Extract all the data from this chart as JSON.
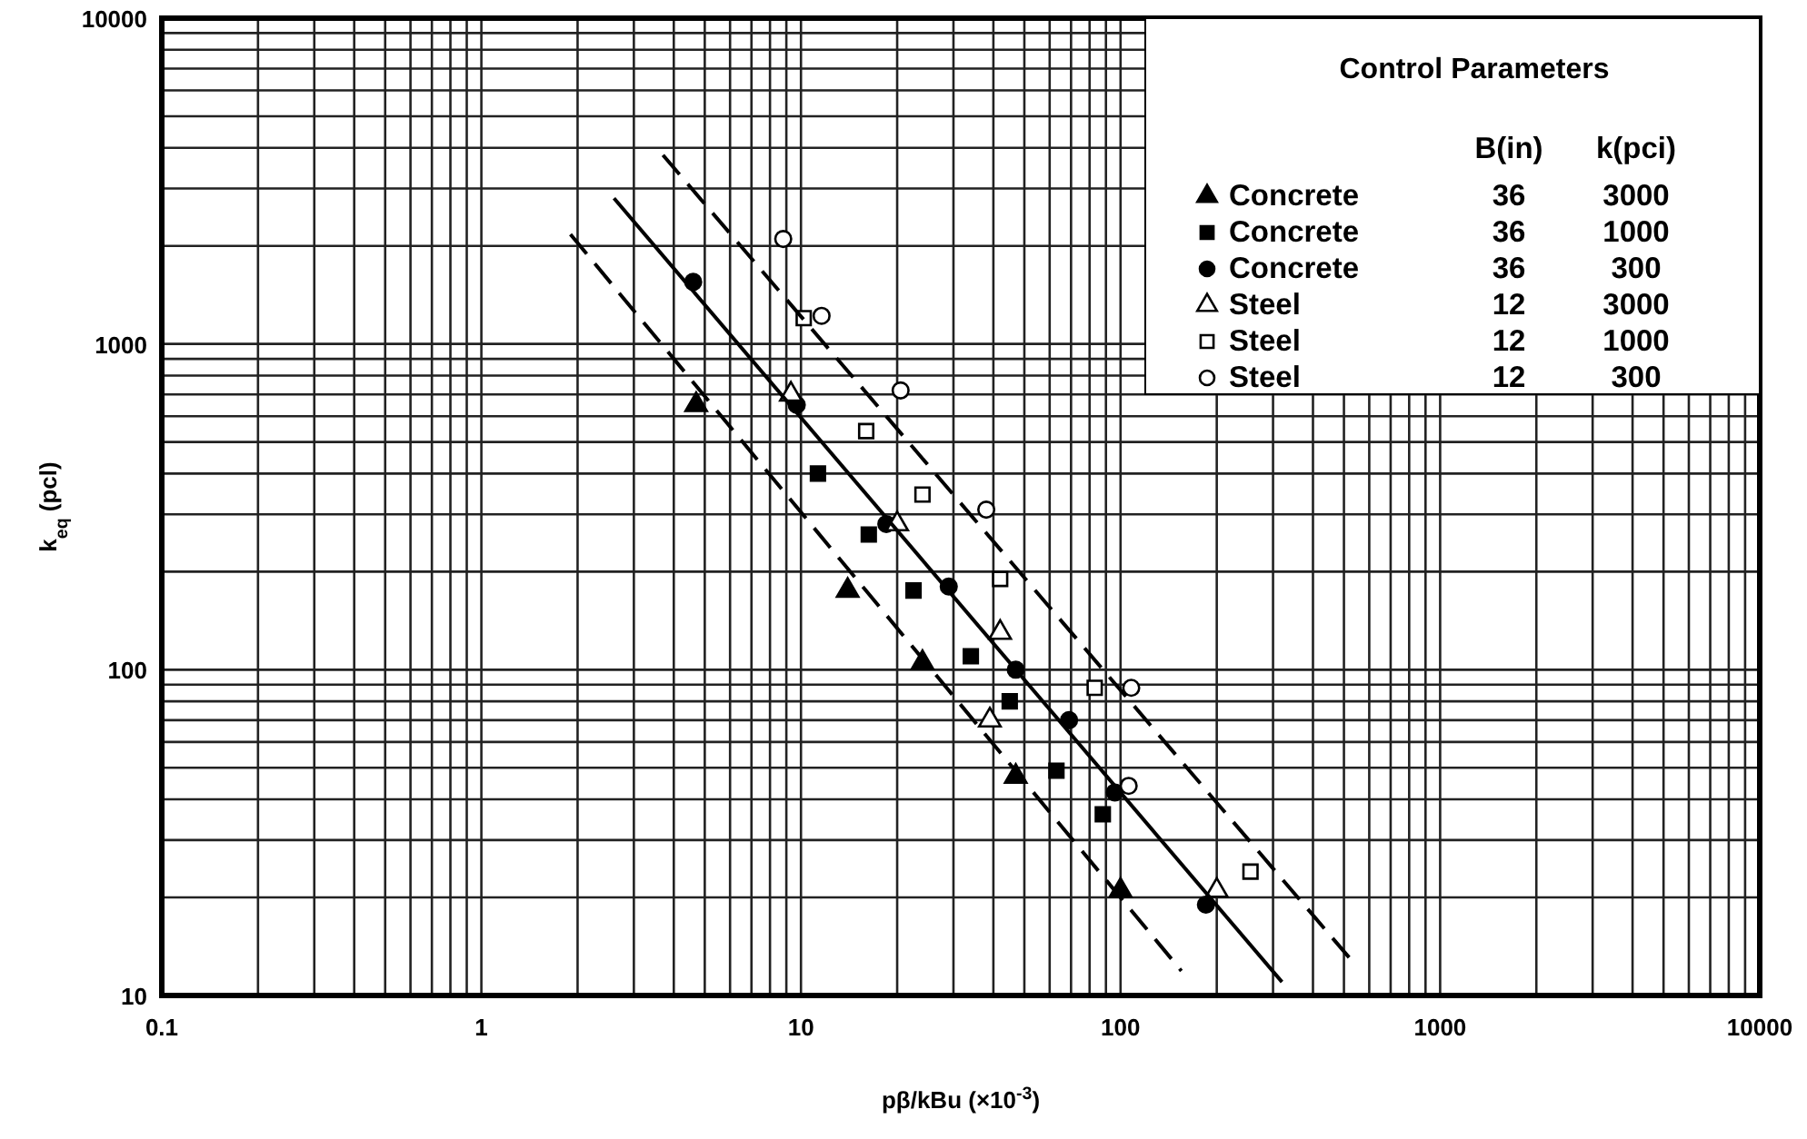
{
  "chart_data": {
    "type": "scatter",
    "xlabel": "pβ/kBu (×10$^{-3}$)",
    "ylabel": "k$_{eq}$ (pcl)",
    "legend_title": "Control Parameters",
    "legend": "top right",
    "annotations": [
      "B(in)",
      "k(pci)",
      "36",
      "3000",
      "36",
      "1000",
      "36",
      "300",
      "12",
      "3000",
      "12",
      "1000",
      "12",
      "300"
    ],
    "log": "xy",
    "grid": true,
    "xlim": [
      0.1,
      10000
    ],
    "xticks": [
      0.1,
      1,
      10,
      100,
      1000,
      10000
    ],
    "ylim": [
      10,
      10000
    ],
    "yticks": [
      10,
      100,
      1000,
      10000
    ],
    "series": [
      {
        "name": "Concrete",
        "color": "#000000",
        "marker": "triangle",
        "x": [
          4.7,
          14,
          24,
          47,
          100
        ],
        "values": [
          650,
          175,
          105,
          47,
          21
        ]
      },
      {
        "name": "Concrete",
        "color": "#000000",
        "marker": "square",
        "x": [
          11.3,
          16.3,
          22.5,
          34,
          45,
          63,
          88
        ],
        "values": [
          400,
          260,
          175,
          110,
          80,
          49,
          36
        ]
      },
      {
        "name": "Concrete",
        "color": "#000000",
        "marker": "circle",
        "x": [
          4.6,
          9.7,
          18.5,
          29,
          47,
          69,
          96,
          185
        ],
        "values": [
          1550,
          650,
          280,
          180,
          100,
          70,
          42,
          19
        ]
      },
      {
        "name": "Steel",
        "color": "#ffffff",
        "marker": "triangle",
        "x": [
          9.3,
          20,
          42,
          39,
          200
        ],
        "values": [
          700,
          280,
          130,
          70,
          21
        ]
      },
      {
        "name": "Steel",
        "color": "#ffffff",
        "marker": "square",
        "x": [
          10.2,
          16,
          24,
          42,
          83,
          255
        ],
        "values": [
          1200,
          540,
          345,
          190,
          88,
          24
        ]
      },
      {
        "name": "Steel",
        "color": "#ffffff",
        "marker": "circle",
        "x": [
          8.8,
          11.6,
          20.5,
          38,
          108,
          106
        ],
        "values": [
          2100,
          1220,
          720,
          310,
          88,
          44
        ]
      },
      {
        "type": "line",
        "color": "#000000",
        "line_style": "dashed",
        "x": [
          3.7,
          540
        ],
        "values": [
          3800,
          12.5
        ]
      },
      {
        "type": "line",
        "color": "#000000",
        "line_style": "solid",
        "x": [
          2.6,
          320
        ],
        "values": [
          2800,
          11
        ]
      },
      {
        "type": "line",
        "color": "#000000",
        "line_style": "dashed",
        "x": [
          1.9,
          155
        ],
        "values": [
          2170,
          11.9
        ]
      }
    ]
  }
}
